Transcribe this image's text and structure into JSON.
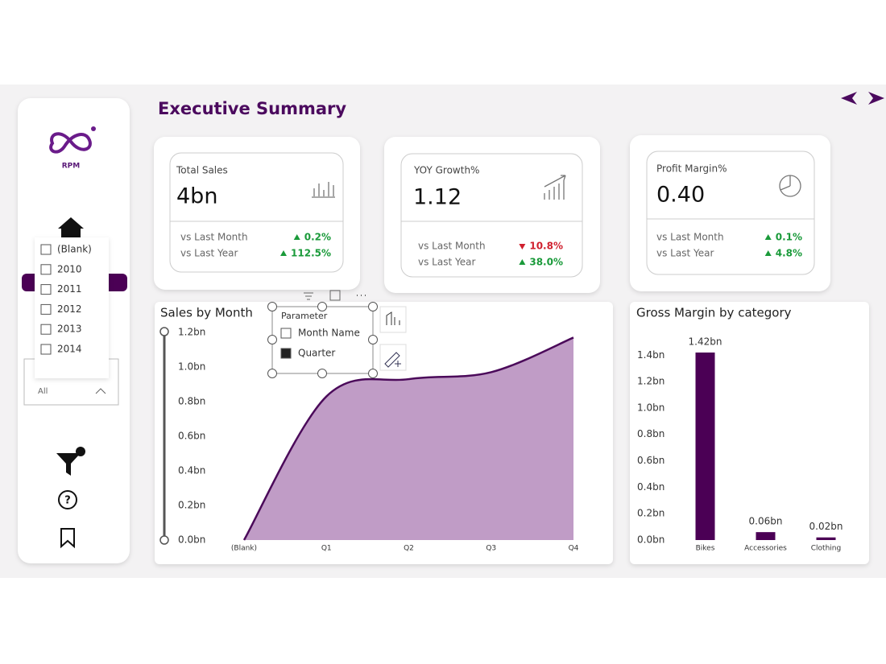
{
  "header": {
    "title": "Executive Summary"
  },
  "logo": {
    "text": "RPM"
  },
  "kpis": [
    {
      "label": "Total Sales",
      "value": "4bn",
      "rows": [
        {
          "label": "vs Last Month",
          "change": "0.2%",
          "direction": "up"
        },
        {
          "label": "vs Last Year",
          "change": "112.5%",
          "direction": "up"
        }
      ]
    },
    {
      "label": "YOY Growth%",
      "value": "1.12",
      "rows": [
        {
          "label": "vs Last Month",
          "change": "10.8%",
          "direction": "down"
        },
        {
          "label": "vs Last Year",
          "change": "38.0%",
          "direction": "up"
        }
      ]
    },
    {
      "label": "Profit Margin%",
      "value": "0.40",
      "rows": [
        {
          "label": "vs Last Month",
          "change": "0.1%",
          "direction": "up"
        },
        {
          "label": "vs Last Year",
          "change": "4.8%",
          "direction": "up"
        }
      ]
    }
  ],
  "slicer": {
    "items": [
      "(Blank)",
      "2010",
      "2011",
      "2012",
      "2013",
      "2014"
    ],
    "selection": "All"
  },
  "parameter": {
    "title": "Parameter",
    "options": [
      "Month Name",
      "Quarter"
    ],
    "selected": 1
  },
  "chart_data": [
    {
      "type": "area",
      "title": "Sales by Month",
      "categories": [
        "(Blank)",
        "Q1",
        "Q2",
        "Q3",
        "Q4"
      ],
      "values": [
        0,
        0.83,
        0.93,
        0.97,
        1.17
      ],
      "color": "#c09cc6",
      "line_color": "#4b0a5a",
      "ylim": [
        0,
        1.2
      ],
      "yticks": [
        {
          "value": 0,
          "label": "0.0bn"
        },
        {
          "value": 0.2,
          "label": "0.2bn"
        },
        {
          "value": 0.4,
          "label": "0.4bn"
        },
        {
          "value": 0.6,
          "label": "0.6bn"
        },
        {
          "value": 0.8,
          "label": "0.8bn"
        },
        {
          "value": 1.0,
          "label": "1.0bn"
        },
        {
          "value": 1.2,
          "label": "1.2bn"
        }
      ]
    },
    {
      "type": "bar",
      "title": "Gross Margin by category",
      "categories": [
        "Bikes",
        "Accessories",
        "Clothing"
      ],
      "values": [
        1.42,
        0.06,
        0.02
      ],
      "value_labels": [
        "1.42bn",
        "0.06bn",
        "0.02bn"
      ],
      "color": "#4b0055",
      "ylim": [
        0,
        1.42
      ],
      "yticks": [
        {
          "value": 0,
          "label": "0.0bn"
        },
        {
          "value": 0.2,
          "label": "0.2bn"
        },
        {
          "value": 0.4,
          "label": "0.4bn"
        },
        {
          "value": 0.6,
          "label": "0.6bn"
        },
        {
          "value": 0.8,
          "label": "0.8bn"
        },
        {
          "value": 1.0,
          "label": "1.0bn"
        },
        {
          "value": 1.2,
          "label": "1.2bn"
        },
        {
          "value": 1.4,
          "label": "1.4bn"
        }
      ]
    }
  ]
}
